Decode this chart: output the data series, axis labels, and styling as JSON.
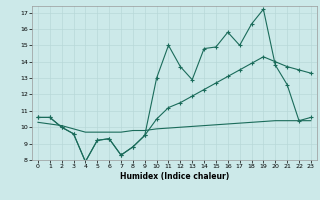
{
  "xlabel": "Humidex (Indice chaleur)",
  "xlim": [
    -0.5,
    23.5
  ],
  "ylim": [
    8,
    17.4
  ],
  "yticks": [
    8,
    9,
    10,
    11,
    12,
    13,
    14,
    15,
    16,
    17
  ],
  "xticks": [
    0,
    1,
    2,
    3,
    4,
    5,
    6,
    7,
    8,
    9,
    10,
    11,
    12,
    13,
    14,
    15,
    16,
    17,
    18,
    19,
    20,
    21,
    22,
    23
  ],
  "bg_color": "#cce9e9",
  "grid_color": "#b8d8d8",
  "line_color": "#1a6b5a",
  "line1_x": [
    0,
    1,
    2,
    3,
    4,
    5,
    6,
    7,
    8,
    9,
    10,
    11,
    12,
    13,
    14,
    15,
    16,
    17,
    18,
    19,
    20,
    21,
    22,
    23
  ],
  "line1_y": [
    10.6,
    10.6,
    10.0,
    9.6,
    7.9,
    9.2,
    9.3,
    8.3,
    8.8,
    9.5,
    13.0,
    15.0,
    13.7,
    12.9,
    14.8,
    14.9,
    15.8,
    15.0,
    16.3,
    17.2,
    13.8,
    12.6,
    10.4,
    10.6
  ],
  "line2_x": [
    0,
    1,
    2,
    3,
    4,
    5,
    6,
    7,
    8,
    9,
    10,
    11,
    12,
    13,
    14,
    15,
    16,
    17,
    18,
    19,
    20,
    21,
    22,
    23
  ],
  "line2_y": [
    10.6,
    10.6,
    10.0,
    9.6,
    7.9,
    9.2,
    9.3,
    8.3,
    8.8,
    9.5,
    10.5,
    11.2,
    11.5,
    11.9,
    12.3,
    12.7,
    13.1,
    13.5,
    13.9,
    14.3,
    14.0,
    13.7,
    13.5,
    13.3
  ],
  "line3_x": [
    0,
    1,
    2,
    3,
    4,
    5,
    6,
    7,
    8,
    9,
    10,
    11,
    12,
    13,
    14,
    15,
    16,
    17,
    18,
    19,
    20,
    21,
    22,
    23
  ],
  "line3_y": [
    10.3,
    10.2,
    10.1,
    9.9,
    9.7,
    9.7,
    9.7,
    9.7,
    9.8,
    9.8,
    9.9,
    9.95,
    10.0,
    10.05,
    10.1,
    10.15,
    10.2,
    10.25,
    10.3,
    10.35,
    10.4,
    10.4,
    10.4,
    10.4
  ]
}
